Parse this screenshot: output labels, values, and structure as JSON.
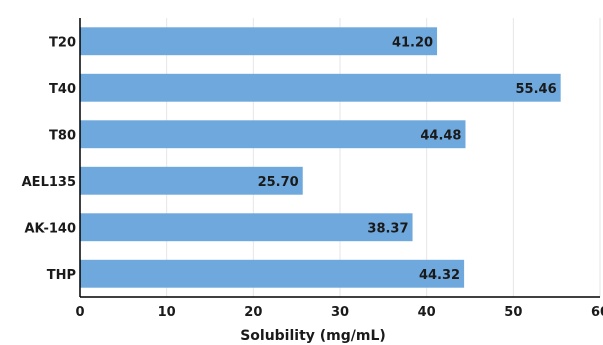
{
  "chart_data": {
    "type": "bar",
    "orientation": "horizontal",
    "categories": [
      "T20",
      "T40",
      "T80",
      "AEL135",
      "AK-140",
      "THP"
    ],
    "values": [
      41.2,
      55.46,
      44.48,
      25.7,
      38.37,
      44.32
    ],
    "value_labels": [
      "41.20",
      "55.46",
      "44.48",
      "25.70",
      "38.37",
      "44.32"
    ],
    "xlabel": "Solubility (mg/mL)",
    "ylabel": "",
    "title": "",
    "xlim": [
      0,
      60
    ],
    "xticks": [
      0,
      10,
      20,
      30,
      40,
      50,
      60
    ],
    "grid": true,
    "bar_color": "#6fa8dc"
  }
}
